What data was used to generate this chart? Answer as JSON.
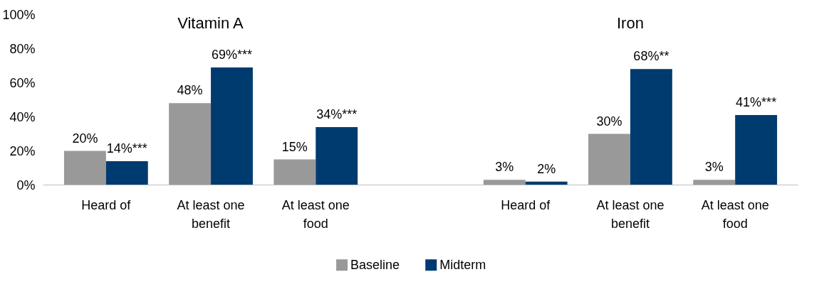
{
  "chart_data": {
    "type": "bar",
    "categories": [
      "Heard of",
      "At least one benefit",
      "At least one food",
      null,
      "Heard of",
      "At least one benefit",
      "At least one food"
    ],
    "series": [
      {
        "name": "Baseline",
        "color": "#999999",
        "values": [
          20,
          48,
          15,
          null,
          3,
          30,
          3
        ],
        "value_labels": [
          "20%",
          "48%",
          "15%",
          null,
          "3%",
          "30%",
          "3%"
        ]
      },
      {
        "name": "Midterm",
        "color": "#003b70",
        "values": [
          14,
          69,
          34,
          null,
          2,
          68,
          41
        ],
        "value_labels": [
          "14%***",
          "69%***",
          "34%***",
          null,
          "2%",
          "68%**",
          "41%***"
        ]
      }
    ],
    "annotations": [
      "Vitamin A",
      "Iron"
    ],
    "ylim": [
      0,
      100
    ],
    "yticks": [
      {
        "value": 0,
        "label": "0%"
      },
      {
        "value": 20,
        "label": "20%"
      },
      {
        "value": 40,
        "label": "40%"
      },
      {
        "value": 60,
        "label": "60%"
      },
      {
        "value": 80,
        "label": "80%"
      },
      {
        "value": 100,
        "label": "100%"
      }
    ],
    "grid": false,
    "legend": "bottom"
  }
}
